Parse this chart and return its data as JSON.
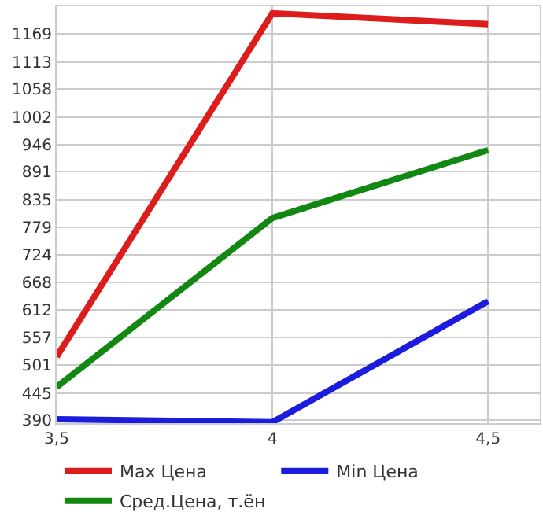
{
  "chart_data": {
    "type": "line",
    "x": [
      3.5,
      4,
      4.5
    ],
    "series": [
      {
        "name": "Max Цена",
        "color": "#dd1c1c",
        "values": [
          518,
          1211,
          1189
        ]
      },
      {
        "name": "Min Цена",
        "color": "#1c1cdd",
        "values": [
          392,
          386,
          630
        ]
      },
      {
        "name": "Сред.Цена, т.ён",
        "color": "#118811",
        "values": [
          457,
          798,
          935
        ]
      }
    ],
    "xlim": [
      3.5,
      4.62
    ],
    "xticks": [
      {
        "value": 3.5,
        "label": "3,5"
      },
      4,
      {
        "value": 4.5,
        "label": "4,5"
      }
    ],
    "ylim": [
      384,
      1225
    ],
    "yticks": [
      390,
      445,
      501,
      557,
      612,
      668,
      724,
      779,
      835,
      891,
      946,
      1002,
      1058,
      1113,
      1169
    ],
    "grid": true,
    "legend": "bottom",
    "marker": "none",
    "line_style": "solid"
  }
}
